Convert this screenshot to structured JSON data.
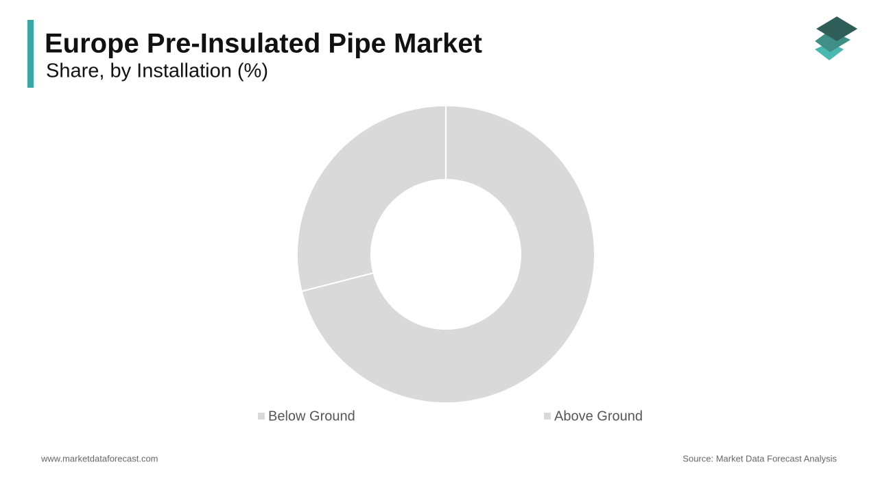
{
  "chart_data": {
    "type": "donut",
    "title": "Europe Pre-Insulated Pipe Market",
    "subtitle": "Share, by Installation (%)",
    "categories": [
      "Below Ground",
      "Above Ground"
    ],
    "values": [
      71,
      29
    ],
    "colors": [
      "#d9d9d9",
      "#d9d9d9"
    ],
    "legend": "bottom"
  },
  "footer": {
    "website": "www.marketdataforecast.com",
    "source": "Source: Market Data Forecast Analysis"
  }
}
